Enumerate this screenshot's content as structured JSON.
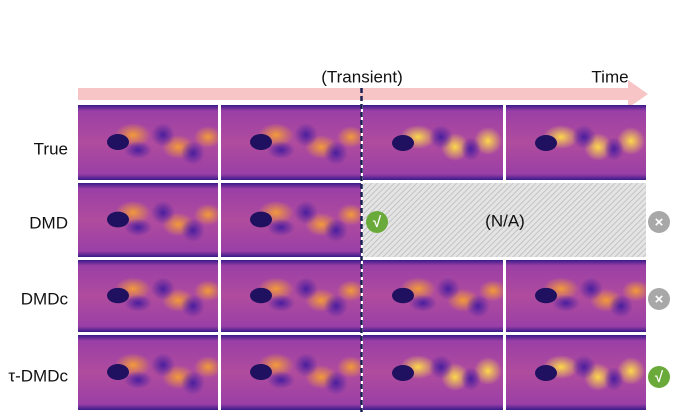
{
  "header": {
    "transient": "(Transient)",
    "time": "Time"
  },
  "rows": [
    {
      "label": "True"
    },
    {
      "label": "DMD"
    },
    {
      "label": "DMDc"
    },
    {
      "label": "τ-DMDc"
    }
  ],
  "na": "(N/A)",
  "icons": [
    {
      "symbol": "√"
    },
    {
      "symbol": "×"
    },
    {
      "symbol": "×"
    },
    {
      "symbol": "√"
    }
  ]
}
